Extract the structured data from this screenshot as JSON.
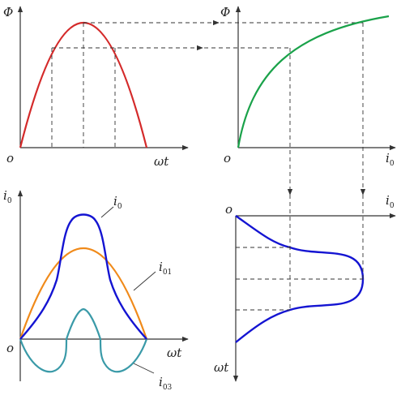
{
  "labels": {
    "phi": "Φ",
    "origin": "o",
    "omega_t": "ωt",
    "i_base": "i",
    "sub_0": "0",
    "sub_01": "01",
    "sub_03": "03"
  },
  "colors": {
    "flux_wave": "#d42a2a",
    "magnetization_curve": "#1aa24a",
    "current_i0": "#1414d2",
    "current_i01": "#f08a1a",
    "current_i03": "#3a9aa8",
    "axis": "#333333"
  }
}
